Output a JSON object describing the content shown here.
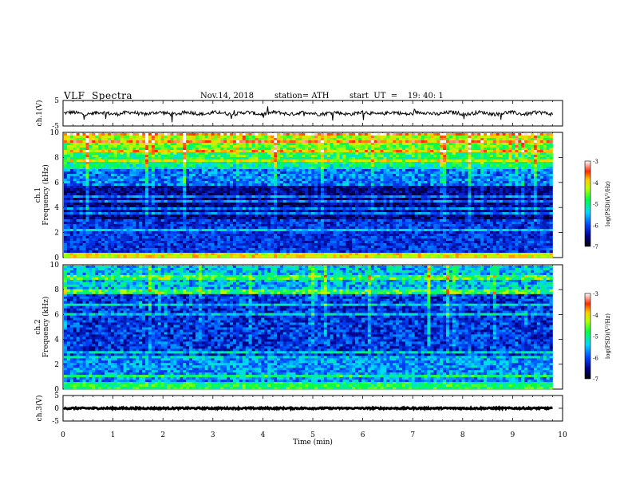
{
  "header": {
    "title": "VLF  Spectra",
    "date": "Nov.14, 2018",
    "station": "station= ATH",
    "start": "start  UT  =    19: 40: 1"
  },
  "chart_data": [
    {
      "type": "line",
      "panel": "ch1-waveform",
      "ylabel": "ch.1(V)",
      "ylim": [
        -5,
        5
      ],
      "yticks": [
        "5",
        "-5"
      ],
      "xlim": [
        0,
        10
      ],
      "baseline": 0.0,
      "color": "#000000"
    },
    {
      "type": "heatmap",
      "panel": "ch1-spectrogram",
      "ylabel_top": "ch.1",
      "ylabel": "Frequency  (kHz)",
      "ylim": [
        0,
        10
      ],
      "yticks": [
        "0",
        "2",
        "4",
        "6",
        "8",
        "10"
      ],
      "xlim": [
        0,
        10
      ],
      "data_end_min": 9.8,
      "colorbar": {
        "label": "log(PSD)(V²/Hz)",
        "range": [
          -7,
          -3
        ],
        "ticks": [
          "-3",
          "-4",
          "-5",
          "-6",
          "-7"
        ]
      }
    },
    {
      "type": "heatmap",
      "panel": "ch2-spectrogram",
      "ylabel_top": "ch.2",
      "ylabel": "Frequency  (kHz)",
      "ylim": [
        0,
        10
      ],
      "yticks": [
        "0",
        "2",
        "4",
        "6",
        "8",
        "10"
      ],
      "xlim": [
        0,
        10
      ],
      "data_end_min": 9.8,
      "colorbar": {
        "label": "log(PSD)(V²/Hz)",
        "range": [
          -7,
          -3
        ],
        "ticks": [
          "-3",
          "-4",
          "-5",
          "-6",
          "-7"
        ]
      }
    },
    {
      "type": "line",
      "panel": "ch3-waveform",
      "ylabel": "ch.3(V)",
      "ylim": [
        -5,
        5
      ],
      "yticks": [
        "5",
        "0",
        "-5"
      ],
      "xlim": [
        0,
        10
      ],
      "xlabel": "Time  (min)",
      "xticks": [
        "0",
        "1",
        "2",
        "3",
        "4",
        "5",
        "6",
        "7",
        "8",
        "9",
        "10"
      ],
      "baseline": 0.0,
      "color": "#000000"
    }
  ]
}
